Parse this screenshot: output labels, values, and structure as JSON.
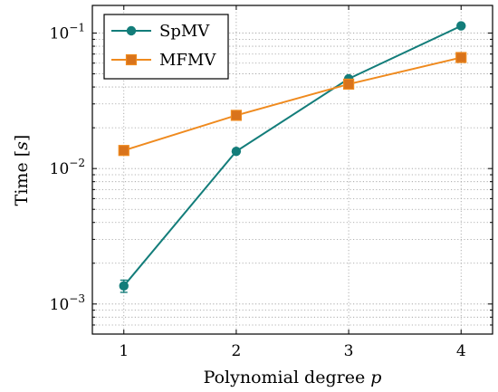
{
  "chart_data": {
    "type": "line",
    "title": "",
    "xlabel": "Polynomial degree",
    "xlabel_var": "p",
    "ylabel": "Time [",
    "ylabel_var": "s",
    "ylabel_close": "]",
    "x": [
      1,
      2,
      3,
      4
    ],
    "xlim": [
      0.72,
      4.28
    ],
    "xticks": [
      "1",
      "2",
      "3",
      "4"
    ],
    "yscale": "log",
    "ylim": [
      0.0006,
      0.16
    ],
    "yticks": [
      {
        "value": 0.001,
        "base": "10",
        "exp": "−3"
      },
      {
        "value": 0.01,
        "base": "10",
        "exp": "−2"
      },
      {
        "value": 0.1,
        "base": "10",
        "exp": "−1"
      }
    ],
    "grid": true,
    "legend_position": "top-left",
    "series": [
      {
        "name": "SpMV",
        "values": [
          0.00136,
          0.0134,
          0.046,
          0.113
        ],
        "error_low": [
          0.00122,
          null,
          null,
          null
        ],
        "error_high": [
          0.0015,
          null,
          null,
          null
        ],
        "color": "#137d7a",
        "marker": "circle"
      },
      {
        "name": "MFMV",
        "values": [
          0.0136,
          0.0247,
          0.042,
          0.066
        ],
        "color": "#ef8a1e",
        "marker_fill": "#d9731b",
        "marker": "square"
      }
    ]
  }
}
